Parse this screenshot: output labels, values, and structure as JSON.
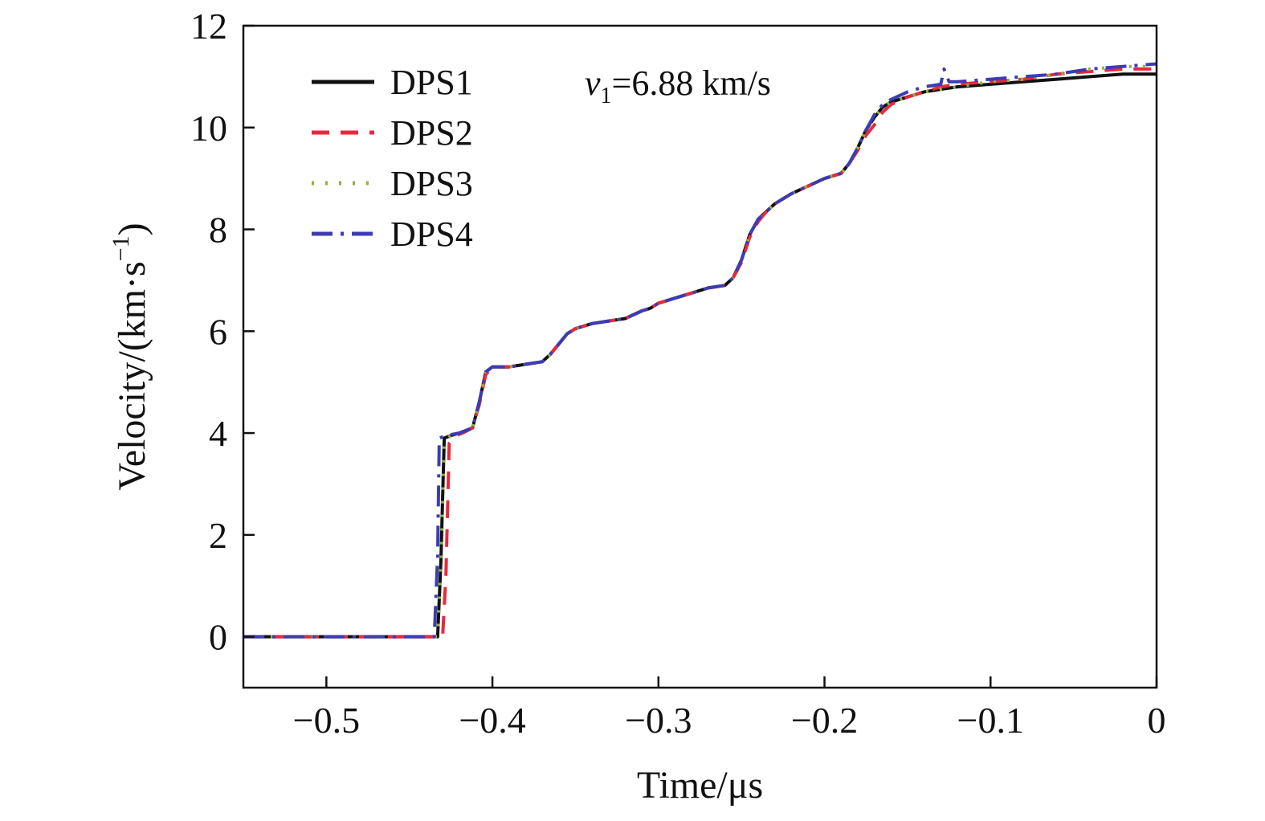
{
  "chart_data": {
    "type": "line",
    "xlabel": "Time/μs",
    "ylabel": "Velocity/(km·s",
    "ylabel_sup": "−1",
    "ylabel_close": ")",
    "xlim": [
      -0.55,
      0
    ],
    "ylim": [
      -1,
      12
    ],
    "xticks": [
      -0.5,
      -0.4,
      -0.3,
      -0.2,
      -0.1,
      0
    ],
    "xtick_labels": [
      "−0.5",
      "−0.4",
      "−0.3",
      "−0.2",
      "−0.1",
      "0"
    ],
    "yticks": [
      0,
      2,
      4,
      6,
      8,
      10,
      12
    ],
    "ytick_labels": [
      "0",
      "2",
      "4",
      "6",
      "8",
      "10",
      "12"
    ],
    "grid": false,
    "legend_position": "top-left",
    "annotation": {
      "var": "v",
      "sub": "1",
      "text": "=6.88 km/s"
    },
    "series": [
      {
        "name": "DPS1",
        "color": "#111111",
        "dash": "",
        "x": [
          -0.55,
          -0.433,
          -0.431,
          -0.429,
          -0.425,
          -0.42,
          -0.412,
          -0.408,
          -0.404,
          -0.4,
          -0.39,
          -0.38,
          -0.37,
          -0.365,
          -0.36,
          -0.355,
          -0.35,
          -0.34,
          -0.33,
          -0.32,
          -0.31,
          -0.305,
          -0.3,
          -0.29,
          -0.28,
          -0.27,
          -0.26,
          -0.255,
          -0.25,
          -0.245,
          -0.24,
          -0.235,
          -0.23,
          -0.22,
          -0.21,
          -0.2,
          -0.19,
          -0.185,
          -0.18,
          -0.175,
          -0.17,
          -0.165,
          -0.16,
          -0.15,
          -0.14,
          -0.13,
          -0.12,
          -0.1,
          -0.08,
          -0.06,
          -0.04,
          -0.02,
          0
        ],
        "y": [
          0,
          0,
          1.5,
          3.9,
          3.95,
          4.0,
          4.1,
          4.6,
          5.2,
          5.3,
          5.3,
          5.35,
          5.4,
          5.55,
          5.75,
          5.95,
          6.05,
          6.15,
          6.2,
          6.25,
          6.4,
          6.45,
          6.55,
          6.65,
          6.75,
          6.85,
          6.9,
          7.05,
          7.4,
          7.9,
          8.2,
          8.35,
          8.5,
          8.7,
          8.85,
          9.0,
          9.1,
          9.3,
          9.6,
          9.95,
          10.2,
          10.4,
          10.5,
          10.6,
          10.7,
          10.75,
          10.8,
          10.85,
          10.9,
          10.95,
          11.0,
          11.05,
          11.05
        ]
      },
      {
        "name": "DPS2",
        "color": "#e8283c",
        "dash": "22,14",
        "x": [
          -0.55,
          -0.43,
          -0.428,
          -0.426,
          -0.422,
          -0.418,
          -0.412,
          -0.408,
          -0.404,
          -0.4,
          -0.39,
          -0.38,
          -0.37,
          -0.365,
          -0.36,
          -0.355,
          -0.35,
          -0.34,
          -0.33,
          -0.32,
          -0.31,
          -0.305,
          -0.3,
          -0.29,
          -0.28,
          -0.27,
          -0.26,
          -0.255,
          -0.25,
          -0.245,
          -0.24,
          -0.235,
          -0.23,
          -0.22,
          -0.21,
          -0.2,
          -0.19,
          -0.185,
          -0.18,
          -0.175,
          -0.17,
          -0.165,
          -0.16,
          -0.15,
          -0.14,
          -0.13,
          -0.12,
          -0.1,
          -0.08,
          -0.06,
          -0.04,
          -0.02,
          0
        ],
        "y": [
          0,
          0,
          1.2,
          3.8,
          3.95,
          4.0,
          4.1,
          4.55,
          5.15,
          5.3,
          5.3,
          5.35,
          5.4,
          5.55,
          5.75,
          5.95,
          6.05,
          6.15,
          6.2,
          6.25,
          6.4,
          6.45,
          6.55,
          6.65,
          6.75,
          6.85,
          6.9,
          7.05,
          7.35,
          7.85,
          8.15,
          8.35,
          8.5,
          8.7,
          8.85,
          9.0,
          9.1,
          9.3,
          9.55,
          9.85,
          10.05,
          10.3,
          10.45,
          10.6,
          10.7,
          10.8,
          10.85,
          10.9,
          10.95,
          11.05,
          11.1,
          11.15,
          11.15
        ]
      },
      {
        "name": "DPS3",
        "color": "#8fb43a",
        "dash": "3,14",
        "x": [
          -0.55,
          -0.433,
          -0.431,
          -0.429,
          -0.425,
          -0.42,
          -0.412,
          -0.408,
          -0.404,
          -0.4,
          -0.39,
          -0.38,
          -0.37,
          -0.365,
          -0.36,
          -0.355,
          -0.35,
          -0.34,
          -0.33,
          -0.32,
          -0.31,
          -0.305,
          -0.3,
          -0.29,
          -0.28,
          -0.27,
          -0.26,
          -0.255,
          -0.25,
          -0.245,
          -0.24,
          -0.235,
          -0.23,
          -0.22,
          -0.21,
          -0.2,
          -0.19,
          -0.185,
          -0.18,
          -0.175,
          -0.17,
          -0.165,
          -0.16,
          -0.15,
          -0.14,
          -0.13,
          -0.12,
          -0.1,
          -0.08,
          -0.06,
          -0.04,
          -0.02,
          0
        ],
        "y": [
          0,
          0,
          1.4,
          3.85,
          3.95,
          4.0,
          4.1,
          4.6,
          5.2,
          5.3,
          5.3,
          5.35,
          5.4,
          5.55,
          5.75,
          5.95,
          6.05,
          6.15,
          6.2,
          6.25,
          6.4,
          6.45,
          6.55,
          6.65,
          6.75,
          6.85,
          6.9,
          7.05,
          7.4,
          7.9,
          8.2,
          8.35,
          8.5,
          8.7,
          8.85,
          9.0,
          9.1,
          9.3,
          9.6,
          9.95,
          10.2,
          10.4,
          10.5,
          10.6,
          10.7,
          10.75,
          10.8,
          10.9,
          10.95,
          11.05,
          11.15,
          11.2,
          11.2
        ]
      },
      {
        "name": "DPS4",
        "color": "#3c3cb4",
        "dash": "26,10,4,10",
        "x": [
          -0.55,
          -0.435,
          -0.433,
          -0.432,
          -0.428,
          -0.42,
          -0.412,
          -0.408,
          -0.404,
          -0.4,
          -0.39,
          -0.38,
          -0.37,
          -0.365,
          -0.36,
          -0.355,
          -0.35,
          -0.34,
          -0.33,
          -0.32,
          -0.31,
          -0.305,
          -0.3,
          -0.29,
          -0.28,
          -0.27,
          -0.26,
          -0.255,
          -0.25,
          -0.245,
          -0.24,
          -0.235,
          -0.23,
          -0.22,
          -0.21,
          -0.2,
          -0.19,
          -0.185,
          -0.18,
          -0.175,
          -0.17,
          -0.165,
          -0.16,
          -0.15,
          -0.14,
          -0.13,
          -0.128,
          -0.125,
          -0.12,
          -0.1,
          -0.08,
          -0.06,
          -0.04,
          -0.02,
          0
        ],
        "y": [
          0,
          0,
          1.6,
          3.9,
          3.95,
          4.0,
          4.1,
          4.6,
          5.2,
          5.3,
          5.3,
          5.35,
          5.4,
          5.55,
          5.75,
          5.95,
          6.05,
          6.15,
          6.2,
          6.25,
          6.4,
          6.45,
          6.55,
          6.65,
          6.75,
          6.85,
          6.9,
          7.05,
          7.4,
          7.9,
          8.2,
          8.35,
          8.5,
          8.7,
          8.85,
          9.0,
          9.1,
          9.3,
          9.6,
          9.95,
          10.25,
          10.45,
          10.55,
          10.7,
          10.8,
          10.85,
          11.15,
          10.9,
          10.9,
          10.95,
          11.0,
          11.05,
          11.15,
          11.2,
          11.25
        ]
      }
    ]
  }
}
